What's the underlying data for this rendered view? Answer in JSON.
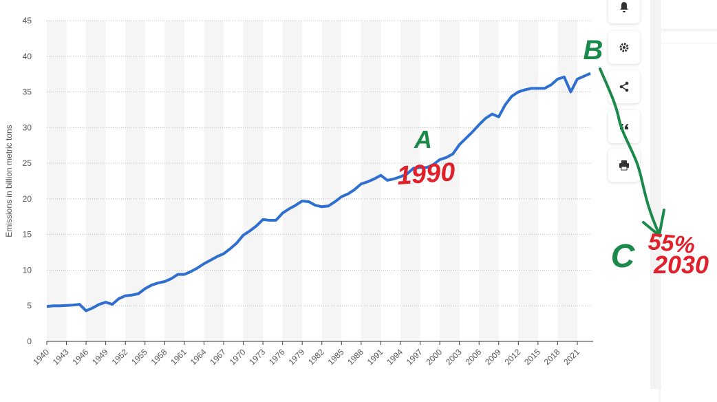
{
  "chart_data": {
    "type": "line",
    "y_label": "Emissions in billion metric tons",
    "x": [
      1940,
      1941,
      1942,
      1943,
      1944,
      1945,
      1946,
      1947,
      1948,
      1949,
      1950,
      1951,
      1952,
      1953,
      1954,
      1955,
      1956,
      1957,
      1958,
      1959,
      1960,
      1961,
      1962,
      1963,
      1964,
      1965,
      1966,
      1967,
      1968,
      1969,
      1970,
      1971,
      1972,
      1973,
      1974,
      1975,
      1976,
      1977,
      1978,
      1979,
      1980,
      1981,
      1982,
      1983,
      1984,
      1985,
      1986,
      1987,
      1988,
      1989,
      1990,
      1991,
      1992,
      1993,
      1994,
      1995,
      1996,
      1997,
      1998,
      1999,
      2000,
      2001,
      2002,
      2003,
      2004,
      2005,
      2006,
      2007,
      2008,
      2009,
      2010,
      2011,
      2012,
      2013,
      2014,
      2015,
      2016,
      2017,
      2018,
      2019,
      2020,
      2021,
      2022,
      2023
    ],
    "series": [
      {
        "color": "#2f6fd0",
        "values": [
          4.9,
          5.0,
          5.0,
          5.05,
          5.1,
          5.2,
          4.3,
          4.7,
          5.2,
          5.5,
          5.2,
          6.0,
          6.4,
          6.5,
          6.7,
          7.4,
          7.9,
          8.2,
          8.4,
          8.8,
          9.4,
          9.4,
          9.8,
          10.3,
          10.9,
          11.4,
          11.9,
          12.3,
          13.0,
          13.8,
          14.9,
          15.5,
          16.2,
          17.1,
          17.0,
          17.0,
          18.0,
          18.6,
          19.1,
          19.7,
          19.6,
          19.1,
          18.9,
          19.0,
          19.6,
          20.3,
          20.7,
          21.3,
          22.1,
          22.4,
          22.8,
          23.3,
          22.6,
          22.8,
          23.1,
          23.5,
          24.3,
          24.4,
          24.4,
          24.8,
          25.5,
          25.8,
          26.3,
          27.6,
          28.5,
          29.4,
          30.4,
          31.3,
          31.9,
          31.5,
          33.2,
          34.4,
          35.0,
          35.3,
          35.5,
          35.5,
          35.5,
          36.0,
          36.8,
          37.1,
          35.0,
          36.8,
          37.2,
          37.6
        ]
      }
    ],
    "xlim": [
      1940,
      2023
    ],
    "xticks": [
      1940,
      1943,
      1946,
      1949,
      1952,
      1955,
      1958,
      1961,
      1964,
      1967,
      1970,
      1973,
      1976,
      1979,
      1982,
      1985,
      1988,
      1991,
      1994,
      1997,
      2000,
      2003,
      2006,
      2009,
      2012,
      2015,
      2018,
      2021
    ],
    "ylim": [
      0,
      45
    ],
    "yticks": [
      0,
      5,
      10,
      15,
      20,
      25,
      30,
      35,
      40,
      45
    ],
    "grid": true,
    "annotations": [
      {
        "text": "A",
        "color": "#1a8a4a"
      },
      {
        "text": "1990",
        "color": "#e0202a"
      },
      {
        "text": "B",
        "color": "#1a8a4a"
      },
      {
        "text": "C",
        "color": "#1a8a4a"
      },
      {
        "text": "55%",
        "color": "#e0202a"
      },
      {
        "text": "2030",
        "color": "#e0202a"
      }
    ]
  }
}
